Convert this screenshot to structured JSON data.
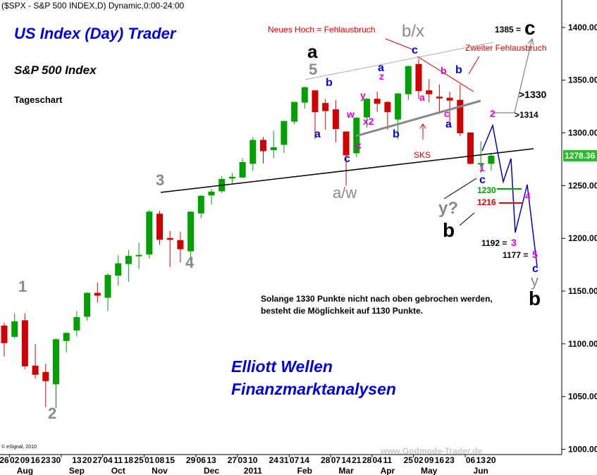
{
  "chart_data": {
    "type": "candlestick",
    "header": "($SPX - S&P 500 INDEX,D) Dynamic,0:00-24:00",
    "categories": [
      "26",
      "02",
      "09",
      "16",
      "23",
      "30",
      null,
      "13",
      "20",
      "27",
      "04",
      "11",
      "18",
      "25",
      "01",
      "08",
      "15",
      null,
      "29",
      "06",
      "13",
      null,
      "27",
      "03",
      "10",
      null,
      "24",
      "31",
      "07",
      "14",
      null,
      "28",
      "07",
      "14",
      "21",
      "28",
      "04",
      "11",
      null,
      "25",
      "02",
      "09",
      "16",
      "23",
      null,
      "06",
      "13",
      "20"
    ],
    "month_ticks": [
      {
        "value": 1,
        "label": "Aug"
      },
      {
        "value": 6,
        "label": "Sep"
      },
      {
        "value": 10,
        "label": "Oct"
      },
      {
        "value": 14,
        "label": "Nov"
      },
      {
        "value": 19,
        "label": "Dec"
      },
      {
        "value": 23,
        "label": "2011"
      },
      {
        "value": 28,
        "label": "Feb"
      },
      {
        "value": 32,
        "label": "Mar"
      },
      {
        "value": 36,
        "label": "Apr"
      },
      {
        "value": 40,
        "label": "May"
      },
      {
        "value": 45,
        "label": "Jun"
      }
    ],
    "open": [
      1117,
      1107,
      1122,
      1079,
      1073,
      1062,
      1103,
      1113,
      1126,
      1148,
      1144,
      1165,
      1176,
      1184,
      1185,
      1223,
      1200,
      1198,
      1188,
      1224,
      1241,
      1245,
      1257,
      1258,
      1271,
      1293,
      1284,
      1289,
      1311,
      1329,
      1340,
      1328,
      1322,
      1301,
      1281,
      1315,
      1332,
      1329,
      1313,
      1337,
      1365,
      1340,
      1334,
      1333,
      1331,
      1300,
      1271,
      1271
    ],
    "high": [
      1120,
      1129,
      1129,
      1100,
      1081,
      1105,
      1111,
      1131,
      1149,
      1158,
      1167,
      1184,
      1189,
      1196,
      1227,
      1226,
      1207,
      1206,
      1225,
      1241,
      1247,
      1259,
      1262,
      1276,
      1296,
      1296,
      1302,
      1311,
      1330,
      1344,
      1340,
      1332,
      1331,
      1301,
      1315,
      1333,
      1339,
      1330,
      1338,
      1364,
      1370,
      1351,
      1346,
      1339,
      1346,
      1300,
      1292,
      1280
    ],
    "low": [
      1088,
      1105,
      1076,
      1067,
      1040,
      1039,
      1092,
      1107,
      1122,
      1139,
      1131,
      1155,
      1159,
      1171,
      1181,
      1194,
      1173,
      1177,
      1173,
      1219,
      1232,
      1243,
      1252,
      1257,
      1264,
      1271,
      1276,
      1281,
      1308,
      1323,
      1294,
      1303,
      1291,
      1250,
      1277,
      1305,
      1320,
      1303,
      1294,
      1331,
      1332,
      1329,
      1318,
      1311,
      1297,
      1270,
      1262,
      1264
    ],
    "close": [
      1101,
      1121,
      1079,
      1071,
      1065,
      1104,
      1110,
      1125,
      1148,
      1146,
      1165,
      1176,
      1183,
      1184,
      1225,
      1199,
      1199,
      1190,
      1225,
      1240,
      1244,
      1256,
      1258,
      1272,
      1293,
      1283,
      1286,
      1311,
      1329,
      1343,
      1320,
      1321,
      1304,
      1279,
      1314,
      1332,
      1328,
      1320,
      1337,
      1363,
      1340,
      1337,
      1333,
      1331,
      1300,
      1271,
      1271,
      1278
    ],
    "last_price": 1278.36,
    "up_color": "#00a000",
    "down_color": "#d00000",
    "ylim": [
      995,
      1426
    ],
    "yticks": [
      {
        "value": 1000,
        "label": "1000.00"
      },
      {
        "value": 1050,
        "label": "1050.00"
      },
      {
        "value": 1100,
        "label": "1100.00"
      },
      {
        "value": 1150,
        "label": "1150.00"
      },
      {
        "value": 1200,
        "label": "1200.00"
      },
      {
        "value": 1250,
        "label": "1250.00"
      },
      {
        "value": 1300,
        "label": "1300.00"
      },
      {
        "value": 1350,
        "label": "1350.00"
      },
      {
        "value": 1400,
        "label": "1400.00"
      }
    ],
    "annotations": [
      "US Index (Day) Trader",
      "S&P 500 Index",
      "Tageschart",
      "Elliott Wellen",
      "Finanzmarktanalysen",
      "Solange 1330 Punkte nicht nach oben gebrochen werden,",
      "besteht die Möglichkeit auf 1130 Punkte.",
      "Neues Hoch = Fehlausbruch",
      "Zweiter Fehlausbruch",
      "b/x",
      "a",
      "5",
      "1",
      "2",
      "3",
      "4",
      "b",
      "a",
      "w",
      "x2",
      "y",
      "x",
      "a",
      "z",
      "b",
      "c",
      "a/w",
      "c",
      "a",
      "b",
      "b",
      "c",
      "a",
      "SKS",
      "1",
      "c",
      "2",
      ">1314",
      ">1330",
      "1385 =",
      "c",
      "1230",
      "1216",
      "4",
      "y?",
      "b",
      "1192 =",
      "3",
      "1177 =",
      "5",
      "c",
      "y",
      "b",
      "© eSignal, 2010",
      "www.Godmode-Trader.de"
    ]
  }
}
